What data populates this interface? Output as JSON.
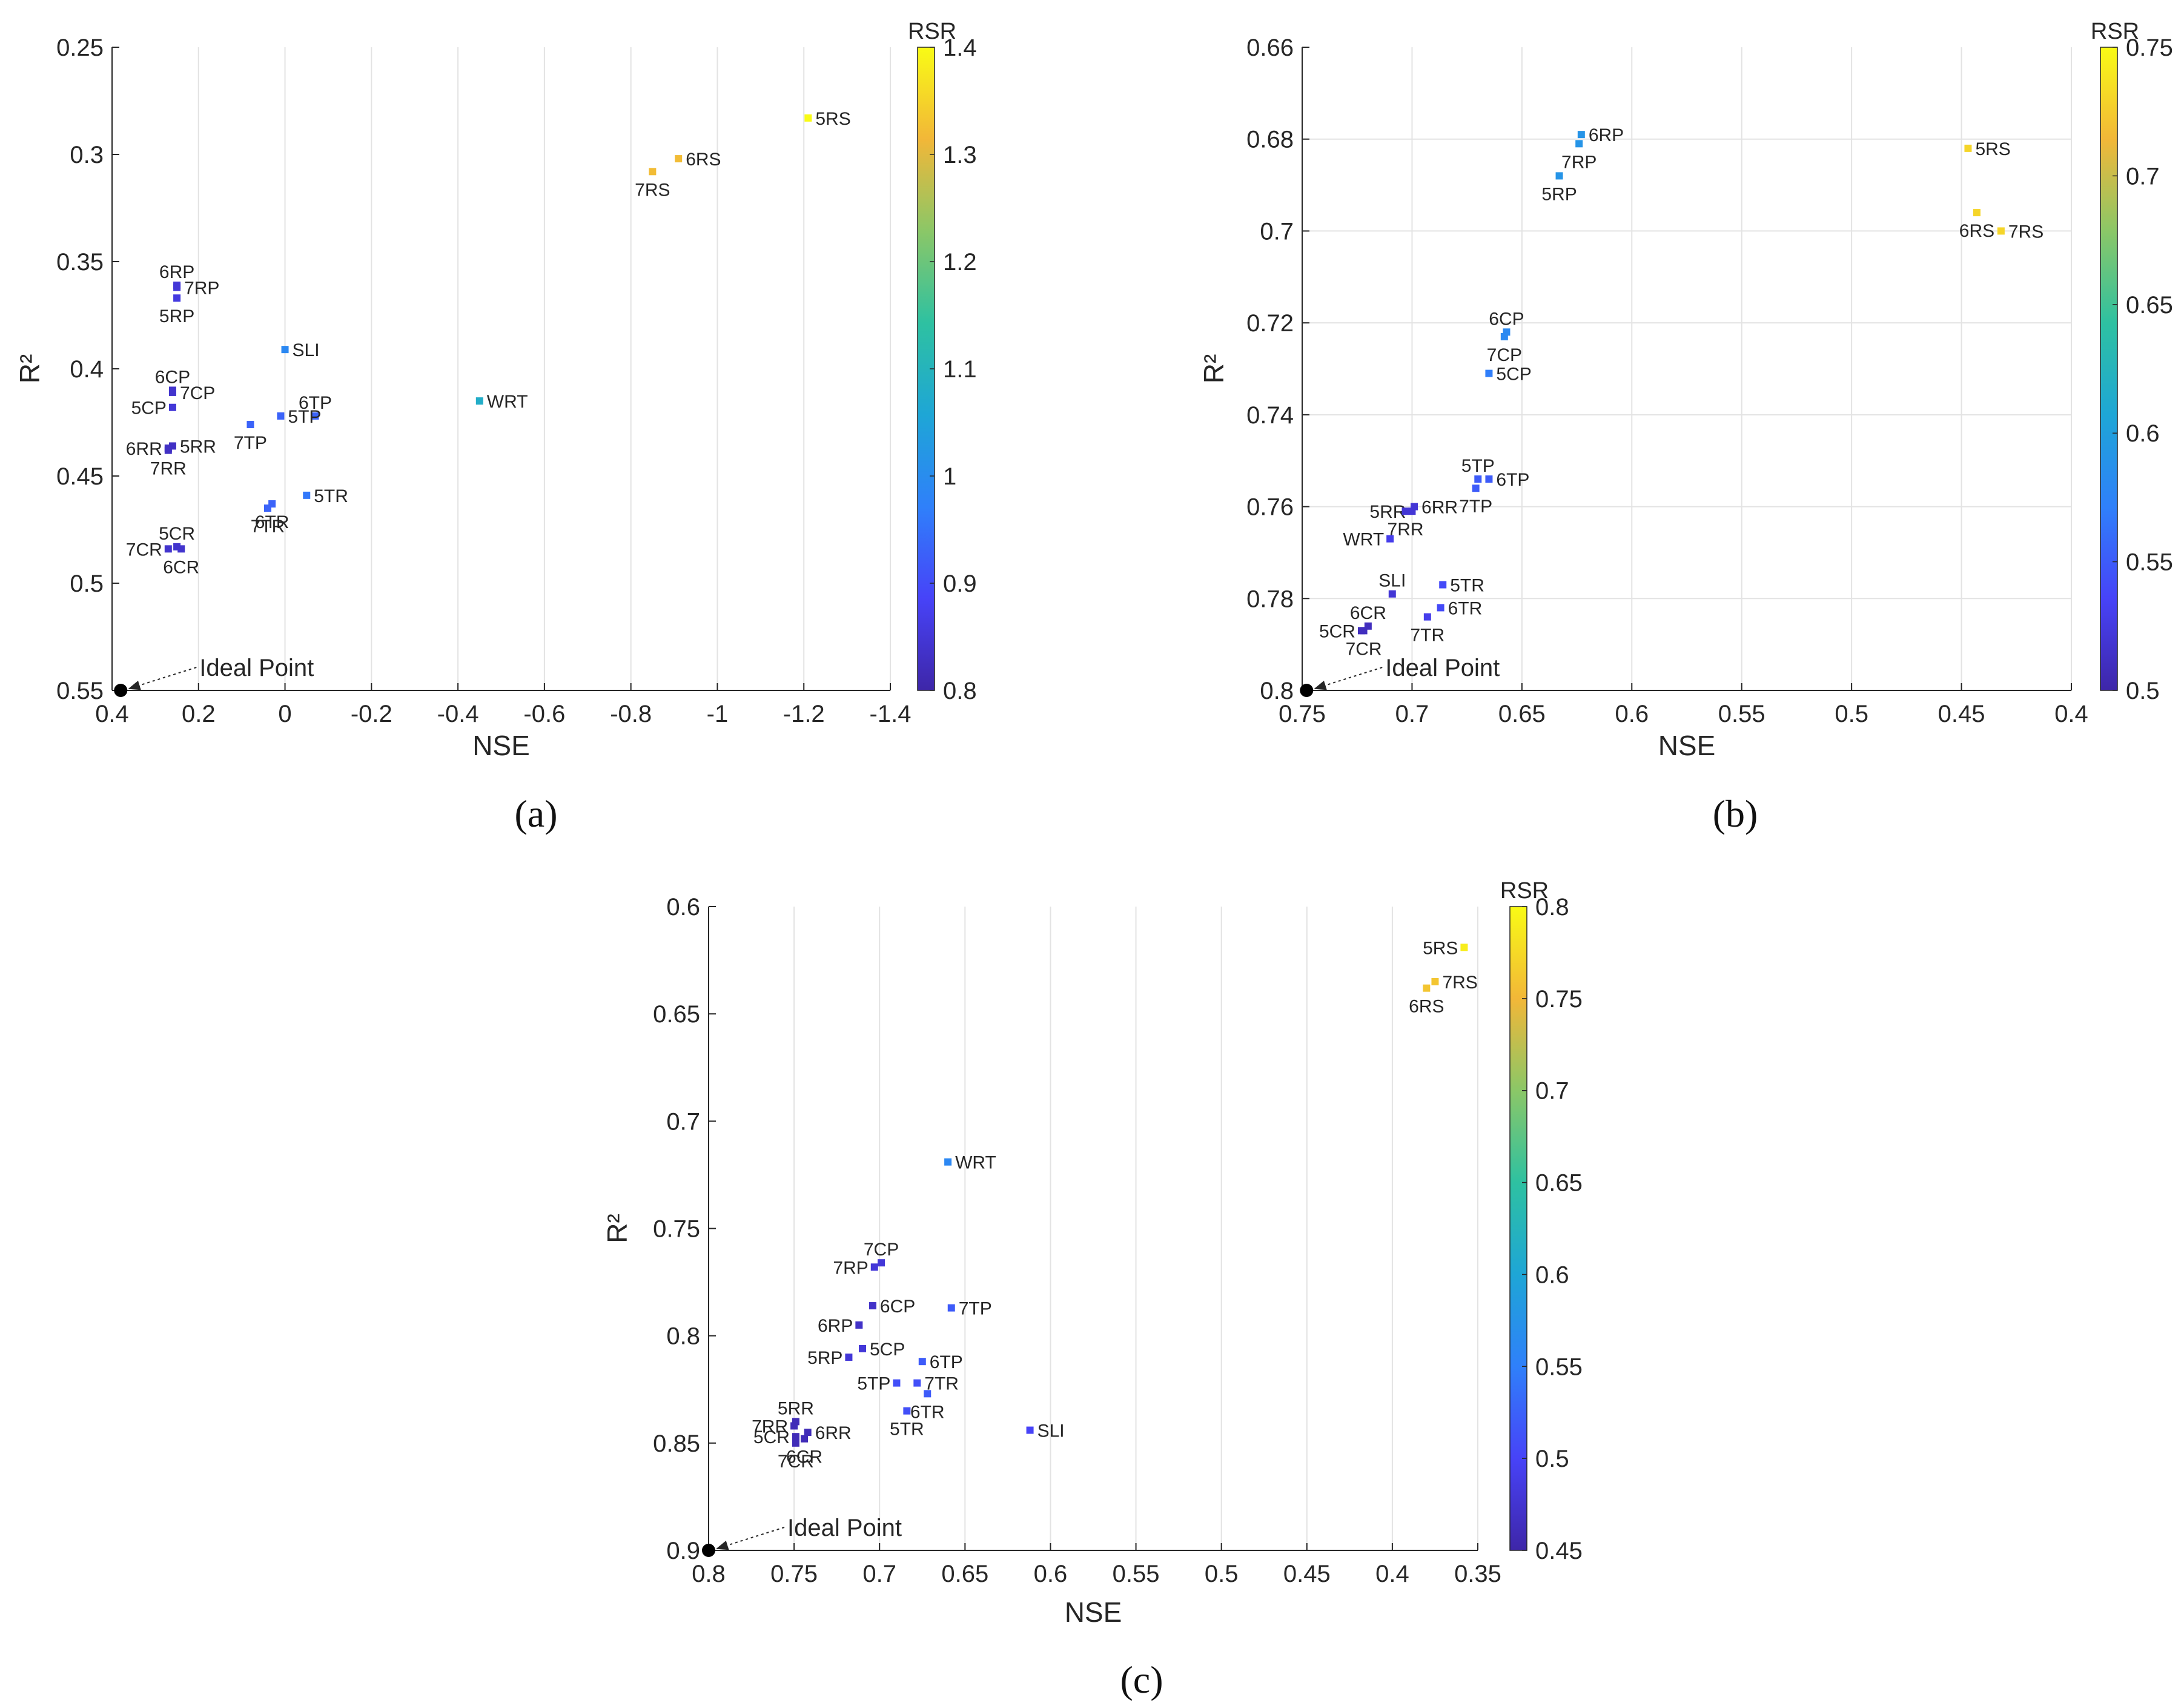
{
  "chart_data": [
    {
      "type": "scatter",
      "panel_label": "(a)",
      "xlabel": "NSE",
      "ylabel": "R²",
      "xlim": [
        0.4,
        -1.4
      ],
      "ylim": [
        0.25,
        0.55
      ],
      "x_reversed": true,
      "y_reversed": true,
      "xticks": [
        "0.4",
        "0.2",
        "0",
        "-0.2",
        "-0.4",
        "-0.6",
        "-0.8",
        "-1",
        "-1.2",
        "-1.4"
      ],
      "xtick_values": [
        0.4,
        0.2,
        0,
        -0.2,
        -0.4,
        -0.6,
        -0.8,
        -1,
        -1.2,
        -1.4
      ],
      "yticks": [
        "0.25",
        "0.3",
        "0.35",
        "0.4",
        "0.45",
        "0.5",
        "0.55"
      ],
      "ytick_values": [
        0.25,
        0.3,
        0.35,
        0.4,
        0.45,
        0.5,
        0.55
      ],
      "grid": "vertical",
      "colorbar": {
        "title": "RSR",
        "min": 0.8,
        "max": 1.4,
        "ticks": [
          "0.8",
          "0.9",
          "1",
          "1.1",
          "1.2",
          "1.3",
          "1.4"
        ],
        "tick_values": [
          0.8,
          0.9,
          1.0,
          1.1,
          1.2,
          1.3,
          1.4
        ]
      },
      "ideal_point": {
        "label": "Ideal Point",
        "x": 0.38,
        "y": 0.55
      },
      "points": [
        {
          "name": "5RS",
          "nse": -1.21,
          "r2": 0.283,
          "rsr": 1.4,
          "label_pos": "right"
        },
        {
          "name": "6RS",
          "nse": -0.91,
          "r2": 0.302,
          "rsr": 1.32,
          "label_pos": "right"
        },
        {
          "name": "7RS",
          "nse": -0.85,
          "r2": 0.308,
          "rsr": 1.32,
          "label_pos": "below"
        },
        {
          "name": "6RP",
          "nse": 0.25,
          "r2": 0.361,
          "rsr": 0.85,
          "label_pos": "above"
        },
        {
          "name": "7RP",
          "nse": 0.25,
          "r2": 0.362,
          "rsr": 0.85,
          "label_pos": "right"
        },
        {
          "name": "5RP",
          "nse": 0.25,
          "r2": 0.367,
          "rsr": 0.86,
          "label_pos": "below"
        },
        {
          "name": "SLI",
          "nse": 0.0,
          "r2": 0.391,
          "rsr": 0.99,
          "label_pos": "right"
        },
        {
          "name": "WRT",
          "nse": -0.45,
          "r2": 0.415,
          "rsr": 1.08,
          "label_pos": "right"
        },
        {
          "name": "6CP",
          "nse": 0.26,
          "r2": 0.41,
          "rsr": 0.84,
          "label_pos": "above"
        },
        {
          "name": "7CP",
          "nse": 0.26,
          "r2": 0.411,
          "rsr": 0.84,
          "label_pos": "right"
        },
        {
          "name": "5CP",
          "nse": 0.26,
          "r2": 0.418,
          "rsr": 0.85,
          "label_pos": "left"
        },
        {
          "name": "6TP",
          "nse": -0.07,
          "r2": 0.422,
          "rsr": 0.93,
          "label_pos": "above"
        },
        {
          "name": "5TP",
          "nse": 0.01,
          "r2": 0.422,
          "rsr": 0.93,
          "label_pos": "right"
        },
        {
          "name": "7TP",
          "nse": 0.08,
          "r2": 0.426,
          "rsr": 0.93,
          "label_pos": "below"
        },
        {
          "name": "5RR",
          "nse": 0.26,
          "r2": 0.436,
          "rsr": 0.83,
          "label_pos": "right"
        },
        {
          "name": "6RR",
          "nse": 0.27,
          "r2": 0.437,
          "rsr": 0.83,
          "label_pos": "left"
        },
        {
          "name": "7RR",
          "nse": 0.27,
          "r2": 0.438,
          "rsr": 0.83,
          "label_pos": "below"
        },
        {
          "name": "5TR",
          "nse": -0.05,
          "r2": 0.459,
          "rsr": 0.96,
          "label_pos": "right"
        },
        {
          "name": "6TR",
          "nse": 0.03,
          "r2": 0.463,
          "rsr": 0.93,
          "label_pos": "below"
        },
        {
          "name": "7TR",
          "nse": 0.04,
          "r2": 0.465,
          "rsr": 0.93,
          "label_pos": "below"
        },
        {
          "name": "5CR",
          "nse": 0.25,
          "r2": 0.483,
          "rsr": 0.84,
          "label_pos": "above"
        },
        {
          "name": "7CR",
          "nse": 0.27,
          "r2": 0.484,
          "rsr": 0.84,
          "label_pos": "left"
        },
        {
          "name": "6CR",
          "nse": 0.24,
          "r2": 0.484,
          "rsr": 0.84,
          "label_pos": "below"
        }
      ]
    },
    {
      "type": "scatter",
      "panel_label": "(b)",
      "xlabel": "NSE",
      "ylabel": "R²",
      "xlim": [
        0.75,
        0.4
      ],
      "ylim": [
        0.66,
        0.8
      ],
      "x_reversed": true,
      "y_reversed": true,
      "xticks": [
        "0.75",
        "0.7",
        "0.65",
        "0.6",
        "0.55",
        "0.5",
        "0.45",
        "0.4"
      ],
      "xtick_values": [
        0.75,
        0.7,
        0.65,
        0.6,
        0.55,
        0.5,
        0.45,
        0.4
      ],
      "yticks": [
        "0.66",
        "0.68",
        "0.7",
        "0.72",
        "0.74",
        "0.76",
        "0.78",
        "0.8"
      ],
      "ytick_values": [
        0.66,
        0.68,
        0.7,
        0.72,
        0.74,
        0.76,
        0.78,
        0.8
      ],
      "grid": "both",
      "colorbar": {
        "title": "RSR",
        "min": 0.5,
        "max": 0.75,
        "ticks": [
          "0.5",
          "0.55",
          "0.6",
          "0.65",
          "0.7",
          "0.75"
        ],
        "tick_values": [
          0.5,
          0.55,
          0.6,
          0.65,
          0.7,
          0.75
        ]
      },
      "ideal_point": {
        "label": "Ideal Point",
        "x": 0.748,
        "y": 0.8
      },
      "points": [
        {
          "name": "6RP",
          "nse": 0.623,
          "r2": 0.679,
          "rsr": 0.59,
          "label_pos": "right"
        },
        {
          "name": "7RP",
          "nse": 0.624,
          "r2": 0.681,
          "rsr": 0.59,
          "label_pos": "below"
        },
        {
          "name": "5RP",
          "nse": 0.633,
          "r2": 0.688,
          "rsr": 0.59,
          "label_pos": "below"
        },
        {
          "name": "5RS",
          "nse": 0.447,
          "r2": 0.682,
          "rsr": 0.73,
          "label_pos": "right"
        },
        {
          "name": "6RS",
          "nse": 0.443,
          "r2": 0.696,
          "rsr": 0.73,
          "label_pos": "below"
        },
        {
          "name": "7RS",
          "nse": 0.432,
          "r2": 0.7,
          "rsr": 0.73,
          "label_pos": "right"
        },
        {
          "name": "6CP",
          "nse": 0.657,
          "r2": 0.722,
          "rsr": 0.58,
          "label_pos": "above"
        },
        {
          "name": "7CP",
          "nse": 0.658,
          "r2": 0.723,
          "rsr": 0.58,
          "label_pos": "below"
        },
        {
          "name": "5CP",
          "nse": 0.665,
          "r2": 0.731,
          "rsr": 0.57,
          "label_pos": "right"
        },
        {
          "name": "5TP",
          "nse": 0.67,
          "r2": 0.754,
          "rsr": 0.55,
          "label_pos": "above"
        },
        {
          "name": "6TP",
          "nse": 0.665,
          "r2": 0.754,
          "rsr": 0.55,
          "label_pos": "right"
        },
        {
          "name": "7TP",
          "nse": 0.671,
          "r2": 0.756,
          "rsr": 0.55,
          "label_pos": "below"
        },
        {
          "name": "6RR",
          "nse": 0.699,
          "r2": 0.76,
          "rsr": 0.52,
          "label_pos": "right"
        },
        {
          "name": "5RR",
          "nse": 0.7,
          "r2": 0.761,
          "rsr": 0.52,
          "label_pos": "left"
        },
        {
          "name": "7RR",
          "nse": 0.703,
          "r2": 0.761,
          "rsr": 0.52,
          "label_pos": "below"
        },
        {
          "name": "WRT",
          "nse": 0.71,
          "r2": 0.767,
          "rsr": 0.53,
          "label_pos": "left"
        },
        {
          "name": "SLI",
          "nse": 0.709,
          "r2": 0.779,
          "rsr": 0.52,
          "label_pos": "above"
        },
        {
          "name": "5TR",
          "nse": 0.686,
          "r2": 0.777,
          "rsr": 0.54,
          "label_pos": "right"
        },
        {
          "name": "6TR",
          "nse": 0.687,
          "r2": 0.782,
          "rsr": 0.54,
          "label_pos": "right"
        },
        {
          "name": "7TR",
          "nse": 0.693,
          "r2": 0.784,
          "rsr": 0.53,
          "label_pos": "below"
        },
        {
          "name": "6CR",
          "nse": 0.72,
          "r2": 0.786,
          "rsr": 0.51,
          "label_pos": "above"
        },
        {
          "name": "5CR",
          "nse": 0.723,
          "r2": 0.787,
          "rsr": 0.51,
          "label_pos": "left"
        },
        {
          "name": "7CR",
          "nse": 0.722,
          "r2": 0.787,
          "rsr": 0.51,
          "label_pos": "below"
        }
      ]
    },
    {
      "type": "scatter",
      "panel_label": "(c)",
      "xlabel": "NSE",
      "ylabel": "R²",
      "xlim": [
        0.8,
        0.35
      ],
      "ylim": [
        0.6,
        0.9
      ],
      "x_reversed": true,
      "y_reversed": true,
      "xticks": [
        "0.8",
        "0.75",
        "0.7",
        "0.65",
        "0.6",
        "0.55",
        "0.5",
        "0.45",
        "0.4",
        "0.35"
      ],
      "xtick_values": [
        0.8,
        0.75,
        0.7,
        0.65,
        0.6,
        0.55,
        0.5,
        0.45,
        0.4,
        0.35
      ],
      "yticks": [
        "0.6",
        "0.65",
        "0.7",
        "0.75",
        "0.8",
        "0.85",
        "0.9"
      ],
      "ytick_values": [
        0.6,
        0.65,
        0.7,
        0.75,
        0.8,
        0.85,
        0.9
      ],
      "grid": "vertical",
      "colorbar": {
        "title": "RSR",
        "min": 0.45,
        "max": 0.8,
        "ticks": [
          "0.45",
          "0.5",
          "0.55",
          "0.6",
          "0.65",
          "0.7",
          "0.75",
          "0.8"
        ],
        "tick_values": [
          0.45,
          0.5,
          0.55,
          0.6,
          0.65,
          0.7,
          0.75,
          0.8
        ]
      },
      "ideal_point": {
        "label": "Ideal Point",
        "x": 0.8,
        "y": 0.9
      },
      "points": [
        {
          "name": "5RS",
          "nse": 0.358,
          "r2": 0.619,
          "rsr": 0.79,
          "label_pos": "left"
        },
        {
          "name": "7RS",
          "nse": 0.375,
          "r2": 0.635,
          "rsr": 0.76,
          "label_pos": "right"
        },
        {
          "name": "6RS",
          "nse": 0.38,
          "r2": 0.638,
          "rsr": 0.76,
          "label_pos": "below"
        },
        {
          "name": "WRT",
          "nse": 0.66,
          "r2": 0.719,
          "rsr": 0.56,
          "label_pos": "right"
        },
        {
          "name": "7CP",
          "nse": 0.699,
          "r2": 0.766,
          "rsr": 0.48,
          "label_pos": "above"
        },
        {
          "name": "7RP",
          "nse": 0.703,
          "r2": 0.768,
          "rsr": 0.48,
          "label_pos": "left"
        },
        {
          "name": "7TP",
          "nse": 0.658,
          "r2": 0.787,
          "rsr": 0.52,
          "label_pos": "right"
        },
        {
          "name": "6CP",
          "nse": 0.704,
          "r2": 0.786,
          "rsr": 0.47,
          "label_pos": "right"
        },
        {
          "name": "6RP",
          "nse": 0.712,
          "r2": 0.795,
          "rsr": 0.47,
          "label_pos": "left"
        },
        {
          "name": "5CP",
          "nse": 0.71,
          "r2": 0.806,
          "rsr": 0.48,
          "label_pos": "right"
        },
        {
          "name": "5RP",
          "nse": 0.718,
          "r2": 0.81,
          "rsr": 0.48,
          "label_pos": "left"
        },
        {
          "name": "6TP",
          "nse": 0.675,
          "r2": 0.812,
          "rsr": 0.52,
          "label_pos": "right"
        },
        {
          "name": "5TP",
          "nse": 0.69,
          "r2": 0.822,
          "rsr": 0.51,
          "label_pos": "left"
        },
        {
          "name": "7TR",
          "nse": 0.678,
          "r2": 0.822,
          "rsr": 0.51,
          "label_pos": "right"
        },
        {
          "name": "6TR",
          "nse": 0.672,
          "r2": 0.827,
          "rsr": 0.52,
          "label_pos": "below"
        },
        {
          "name": "5TR",
          "nse": 0.684,
          "r2": 0.835,
          "rsr": 0.51,
          "label_pos": "below"
        },
        {
          "name": "SLI",
          "nse": 0.612,
          "r2": 0.844,
          "rsr": 0.5,
          "label_pos": "right"
        },
        {
          "name": "5RR",
          "nse": 0.749,
          "r2": 0.84,
          "rsr": 0.46,
          "label_pos": "above"
        },
        {
          "name": "7RR",
          "nse": 0.75,
          "r2": 0.842,
          "rsr": 0.46,
          "label_pos": "left"
        },
        {
          "name": "6RR",
          "nse": 0.742,
          "r2": 0.845,
          "rsr": 0.46,
          "label_pos": "right"
        },
        {
          "name": "5CR",
          "nse": 0.749,
          "r2": 0.847,
          "rsr": 0.46,
          "label_pos": "left"
        },
        {
          "name": "6CR",
          "nse": 0.744,
          "r2": 0.848,
          "rsr": 0.46,
          "label_pos": "below"
        },
        {
          "name": "7CR",
          "nse": 0.749,
          "r2": 0.85,
          "rsr": 0.46,
          "label_pos": "below"
        }
      ]
    }
  ],
  "colors": {
    "axis": "#262626",
    "grid": "#e3e3e3",
    "ideal_marker": "#000000",
    "colormap": [
      "#3e26a8",
      "#4743f8",
      "#2f80fa",
      "#1ea6d6",
      "#2ec1a1",
      "#8bc767",
      "#f2b738",
      "#f9fb15"
    ]
  }
}
